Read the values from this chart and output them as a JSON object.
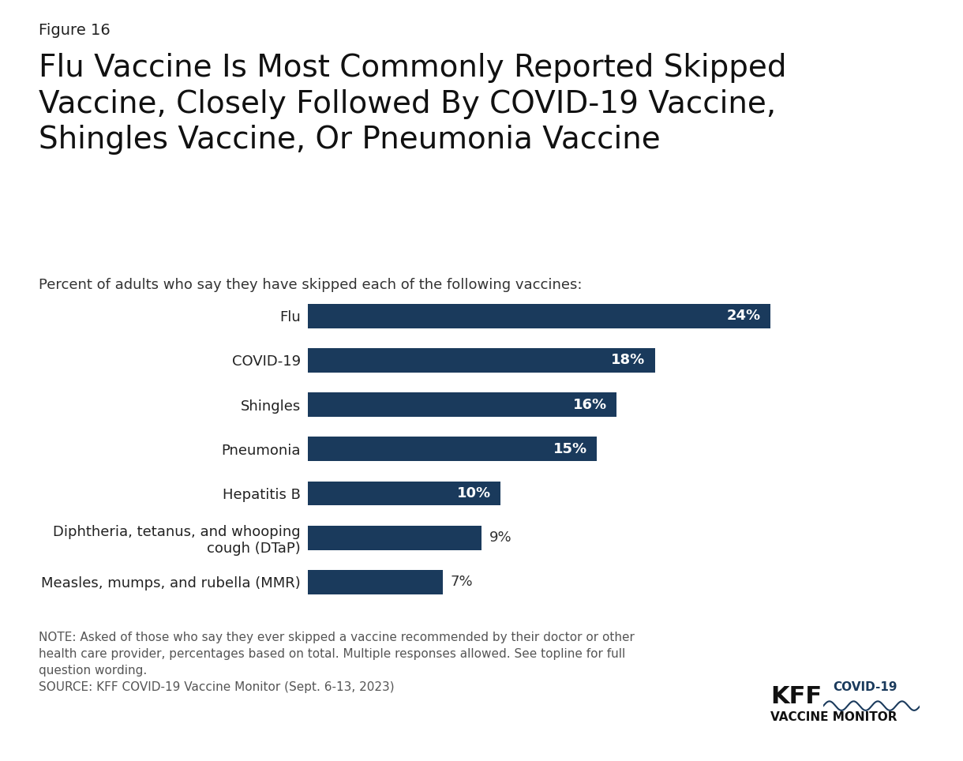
{
  "figure_label": "Figure 16",
  "title": "Flu Vaccine Is Most Commonly Reported Skipped\nVaccine, Closely Followed By COVID-19 Vaccine,\nShingles Vaccine, Or Pneumonia Vaccine",
  "subtitle": "Percent of adults who say they have skipped each of the following vaccines:",
  "categories": [
    "Flu",
    "COVID-19",
    "Shingles",
    "Pneumonia",
    "Hepatitis B",
    "Diphtheria, tetanus, and whooping\ncough (DTaP)",
    "Measles, mumps, and rubella (MMR)"
  ],
  "values": [
    24,
    18,
    16,
    15,
    10,
    9,
    7
  ],
  "bar_color": "#1a3a5c",
  "label_inside_threshold": 10,
  "note_text": "NOTE: Asked of those who say they ever skipped a vaccine recommended by their doctor or other\nhealth care provider, percentages based on total. Multiple responses allowed. See topline for full\nquestion wording.\nSOURCE: KFF COVID-19 Vaccine Monitor (Sept. 6-13, 2023)",
  "kff_logo_text": "KFF",
  "kff_covid_text": "COVID-19",
  "kff_monitor_text": "VACCINE MONITOR",
  "background_color": "#ffffff",
  "bar_label_color_inside": "#ffffff",
  "bar_label_color_outside": "#333333",
  "title_fontsize": 28,
  "figure_label_fontsize": 14,
  "subtitle_fontsize": 13,
  "category_fontsize": 13,
  "bar_label_fontsize": 13,
  "note_fontsize": 11,
  "xlim": [
    0,
    30
  ]
}
